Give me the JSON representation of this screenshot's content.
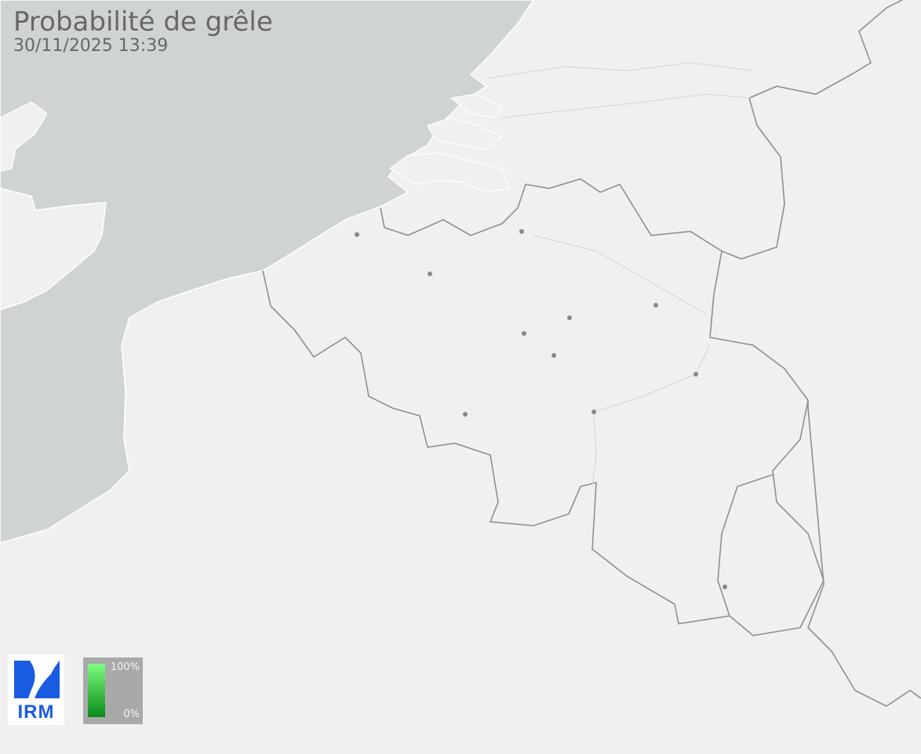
{
  "header": {
    "title": "Probabilité de grêle",
    "timestamp": "30/11/2025 13:39"
  },
  "logo": {
    "text": "IRM",
    "color": "#1a5ce0"
  },
  "legend": {
    "max_label": "100%",
    "min_label": "0%",
    "gradient_top": "#7dfd7d",
    "gradient_bottom": "#0a8a1a"
  },
  "colors": {
    "land": "#eff0ef",
    "sea": "#d0d3d4",
    "border": "#8f8f8f",
    "city": "#888888"
  }
}
